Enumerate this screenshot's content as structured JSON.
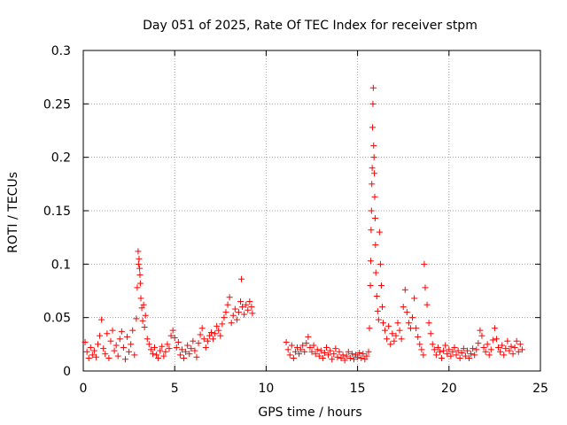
{
  "chart_data": {
    "type": "scatter",
    "title": "Day 051 of 2025, Rate Of TEC Index for receiver stpm",
    "xlabel": "GPS time / hours",
    "ylabel": "ROTI / TECUs",
    "xlim": [
      0,
      25
    ],
    "ylim": [
      0,
      0.3
    ],
    "x_ticks": [
      0,
      5,
      10,
      15,
      20,
      25
    ],
    "x_tick_labels": [
      "0",
      "5",
      "10",
      "15",
      "20",
      "25"
    ],
    "y_ticks": [
      0,
      0.05,
      0.1,
      0.15,
      0.2,
      0.25,
      0.3
    ],
    "y_tick_labels": [
      "0",
      "0.05",
      "0.1",
      "0.15",
      "0.2",
      "0.25",
      "0.3"
    ],
    "grid": true,
    "marker": "+",
    "series": [
      {
        "name": "ROTI",
        "color": "#ff0000",
        "points": [
          [
            0.1,
            0.027
          ],
          [
            0.2,
            0.018
          ],
          [
            0.3,
            0.012
          ],
          [
            0.4,
            0.022
          ],
          [
            0.5,
            0.015
          ],
          [
            0.6,
            0.019
          ],
          [
            0.7,
            0.013
          ],
          [
            0.8,
            0.025
          ],
          [
            0.9,
            0.033
          ],
          [
            1.0,
            0.048
          ],
          [
            1.1,
            0.021
          ],
          [
            1.2,
            0.016
          ],
          [
            1.3,
            0.035
          ],
          [
            1.4,
            0.012
          ],
          [
            1.5,
            0.028
          ],
          [
            1.6,
            0.038
          ],
          [
            1.7,
            0.019
          ],
          [
            1.8,
            0.024
          ],
          [
            1.9,
            0.014
          ],
          [
            2.0,
            0.03
          ],
          [
            2.1,
            0.037
          ],
          [
            2.2,
            0.022
          ],
          [
            2.3,
            0.011
          ],
          [
            2.4,
            0.032
          ],
          [
            2.5,
            0.018
          ],
          [
            2.6,
            0.025
          ],
          [
            2.7,
            0.038
          ],
          [
            2.8,
            0.015
          ],
          [
            2.9,
            0.049
          ],
          [
            2.95,
            0.078
          ],
          [
            3.0,
            0.112
          ],
          [
            3.02,
            0.1
          ],
          [
            3.05,
            0.105
          ],
          [
            3.08,
            0.096
          ],
          [
            3.1,
            0.09
          ],
          [
            3.12,
            0.082
          ],
          [
            3.15,
            0.068
          ],
          [
            3.2,
            0.059
          ],
          [
            3.25,
            0.047
          ],
          [
            3.3,
            0.062
          ],
          [
            3.35,
            0.041
          ],
          [
            3.4,
            0.052
          ],
          [
            3.5,
            0.03
          ],
          [
            3.6,
            0.025
          ],
          [
            3.7,
            0.02
          ],
          [
            3.8,
            0.016
          ],
          [
            3.9,
            0.022
          ],
          [
            4.0,
            0.015
          ],
          [
            4.1,
            0.012
          ],
          [
            4.2,
            0.019
          ],
          [
            4.3,
            0.023
          ],
          [
            4.4,
            0.014
          ],
          [
            4.5,
            0.018
          ],
          [
            4.6,
            0.025
          ],
          [
            4.7,
            0.021
          ],
          [
            4.8,
            0.033
          ],
          [
            4.9,
            0.038
          ],
          [
            5.0,
            0.031
          ],
          [
            5.1,
            0.022
          ],
          [
            5.2,
            0.027
          ],
          [
            5.3,
            0.015
          ],
          [
            5.4,
            0.02
          ],
          [
            5.5,
            0.012
          ],
          [
            5.6,
            0.018
          ],
          [
            5.7,
            0.024
          ],
          [
            5.8,
            0.016
          ],
          [
            5.9,
            0.021
          ],
          [
            6.0,
            0.028
          ],
          [
            6.1,
            0.019
          ],
          [
            6.2,
            0.013
          ],
          [
            6.3,
            0.026
          ],
          [
            6.4,
            0.034
          ],
          [
            6.5,
            0.04
          ],
          [
            6.6,
            0.03
          ],
          [
            6.7,
            0.022
          ],
          [
            6.8,
            0.028
          ],
          [
            6.9,
            0.033
          ],
          [
            7.0,
            0.036
          ],
          [
            7.1,
            0.03
          ],
          [
            7.2,
            0.035
          ],
          [
            7.3,
            0.042
          ],
          [
            7.4,
            0.038
          ],
          [
            7.5,
            0.033
          ],
          [
            7.6,
            0.044
          ],
          [
            7.7,
            0.05
          ],
          [
            7.8,
            0.055
          ],
          [
            7.9,
            0.062
          ],
          [
            8.0,
            0.069
          ],
          [
            8.1,
            0.045
          ],
          [
            8.2,
            0.052
          ],
          [
            8.3,
            0.058
          ],
          [
            8.4,
            0.048
          ],
          [
            8.5,
            0.055
          ],
          [
            8.6,
            0.065
          ],
          [
            8.65,
            0.086
          ],
          [
            8.7,
            0.06
          ],
          [
            8.8,
            0.053
          ],
          [
            8.9,
            0.062
          ],
          [
            9.0,
            0.057
          ],
          [
            9.1,
            0.065
          ],
          [
            9.2,
            0.06
          ],
          [
            9.25,
            0.054
          ],
          [
            11.1,
            0.027
          ],
          [
            11.2,
            0.02
          ],
          [
            11.3,
            0.015
          ],
          [
            11.4,
            0.024
          ],
          [
            11.5,
            0.012
          ],
          [
            11.6,
            0.018
          ],
          [
            11.7,
            0.022
          ],
          [
            11.8,
            0.016
          ],
          [
            11.9,
            0.02
          ],
          [
            12.0,
            0.024
          ],
          [
            12.1,
            0.018
          ],
          [
            12.2,
            0.026
          ],
          [
            12.3,
            0.032
          ],
          [
            12.4,
            0.022
          ],
          [
            12.5,
            0.018
          ],
          [
            12.6,
            0.024
          ],
          [
            12.7,
            0.016
          ],
          [
            12.8,
            0.02
          ],
          [
            12.9,
            0.014
          ],
          [
            13.0,
            0.019
          ],
          [
            13.1,
            0.012
          ],
          [
            13.2,
            0.017
          ],
          [
            13.3,
            0.022
          ],
          [
            13.4,
            0.015
          ],
          [
            13.5,
            0.019
          ],
          [
            13.6,
            0.011
          ],
          [
            13.7,
            0.016
          ],
          [
            13.8,
            0.021
          ],
          [
            13.9,
            0.013
          ],
          [
            14.0,
            0.018
          ],
          [
            14.1,
            0.012
          ],
          [
            14.2,
            0.015
          ],
          [
            14.3,
            0.01
          ],
          [
            14.4,
            0.014
          ],
          [
            14.5,
            0.018
          ],
          [
            14.6,
            0.012
          ],
          [
            14.7,
            0.016
          ],
          [
            14.8,
            0.011
          ],
          [
            14.9,
            0.015
          ],
          [
            15.0,
            0.013
          ],
          [
            15.1,
            0.017
          ],
          [
            15.2,
            0.012
          ],
          [
            15.3,
            0.016
          ],
          [
            15.4,
            0.011
          ],
          [
            15.5,
            0.014
          ],
          [
            15.6,
            0.018
          ],
          [
            15.65,
            0.04
          ],
          [
            15.7,
            0.08
          ],
          [
            15.72,
            0.103
          ],
          [
            15.74,
            0.132
          ],
          [
            15.76,
            0.15
          ],
          [
            15.78,
            0.175
          ],
          [
            15.8,
            0.19
          ],
          [
            15.82,
            0.228
          ],
          [
            15.84,
            0.25
          ],
          [
            15.86,
            0.265
          ],
          [
            15.88,
            0.211
          ],
          [
            15.9,
            0.2
          ],
          [
            15.92,
            0.185
          ],
          [
            15.94,
            0.163
          ],
          [
            15.96,
            0.143
          ],
          [
            15.98,
            0.118
          ],
          [
            16.0,
            0.092
          ],
          [
            16.05,
            0.07
          ],
          [
            16.1,
            0.056
          ],
          [
            16.15,
            0.048
          ],
          [
            16.2,
            0.13
          ],
          [
            16.25,
            0.1
          ],
          [
            16.3,
            0.08
          ],
          [
            16.35,
            0.06
          ],
          [
            16.4,
            0.045
          ],
          [
            16.5,
            0.038
          ],
          [
            16.6,
            0.03
          ],
          [
            16.7,
            0.042
          ],
          [
            16.8,
            0.025
          ],
          [
            16.9,
            0.035
          ],
          [
            17.0,
            0.028
          ],
          [
            17.1,
            0.033
          ],
          [
            17.2,
            0.045
          ],
          [
            17.3,
            0.038
          ],
          [
            17.4,
            0.03
          ],
          [
            17.5,
            0.06
          ],
          [
            17.6,
            0.076
          ],
          [
            17.7,
            0.055
          ],
          [
            17.8,
            0.045
          ],
          [
            17.9,
            0.04
          ],
          [
            18.0,
            0.05
          ],
          [
            18.1,
            0.068
          ],
          [
            18.2,
            0.04
          ],
          [
            18.3,
            0.032
          ],
          [
            18.4,
            0.025
          ],
          [
            18.5,
            0.02
          ],
          [
            18.6,
            0.015
          ],
          [
            18.65,
            0.1
          ],
          [
            18.7,
            0.078
          ],
          [
            18.8,
            0.062
          ],
          [
            18.9,
            0.045
          ],
          [
            19.0,
            0.035
          ],
          [
            19.1,
            0.025
          ],
          [
            19.2,
            0.02
          ],
          [
            19.3,
            0.015
          ],
          [
            19.4,
            0.022
          ],
          [
            19.5,
            0.018
          ],
          [
            19.6,
            0.012
          ],
          [
            19.7,
            0.019
          ],
          [
            19.8,
            0.024
          ],
          [
            19.9,
            0.016
          ],
          [
            20.0,
            0.02
          ],
          [
            20.1,
            0.014
          ],
          [
            20.2,
            0.018
          ],
          [
            20.3,
            0.022
          ],
          [
            20.4,
            0.015
          ],
          [
            20.5,
            0.019
          ],
          [
            20.6,
            0.012
          ],
          [
            20.7,
            0.017
          ],
          [
            20.8,
            0.021
          ],
          [
            20.9,
            0.014
          ],
          [
            21.0,
            0.019
          ],
          [
            21.1,
            0.012
          ],
          [
            21.2,
            0.016
          ],
          [
            21.3,
            0.021
          ],
          [
            21.4,
            0.015
          ],
          [
            21.5,
            0.02
          ],
          [
            21.6,
            0.026
          ],
          [
            21.7,
            0.038
          ],
          [
            21.8,
            0.033
          ],
          [
            21.9,
            0.022
          ],
          [
            22.0,
            0.018
          ],
          [
            22.1,
            0.025
          ],
          [
            22.2,
            0.015
          ],
          [
            22.3,
            0.02
          ],
          [
            22.4,
            0.029
          ],
          [
            22.5,
            0.04
          ],
          [
            22.6,
            0.03
          ],
          [
            22.7,
            0.022
          ],
          [
            22.8,
            0.018
          ],
          [
            22.9,
            0.024
          ],
          [
            23.0,
            0.015
          ],
          [
            23.1,
            0.021
          ],
          [
            23.2,
            0.028
          ],
          [
            23.3,
            0.019
          ],
          [
            23.4,
            0.023
          ],
          [
            23.5,
            0.016
          ],
          [
            23.6,
            0.022
          ],
          [
            23.7,
            0.028
          ],
          [
            23.8,
            0.018
          ],
          [
            23.9,
            0.025
          ],
          [
            24.0,
            0.02
          ]
        ]
      }
    ]
  }
}
